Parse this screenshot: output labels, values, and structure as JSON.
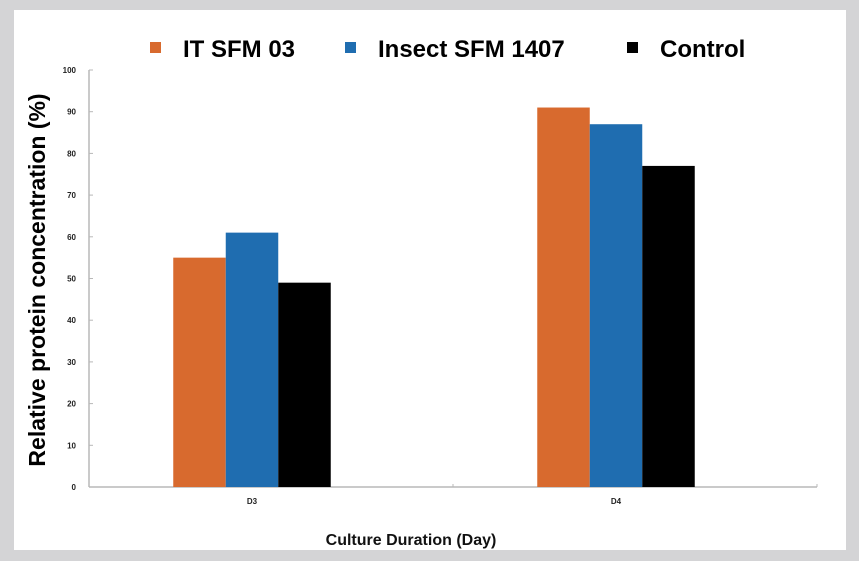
{
  "chart_data": {
    "type": "bar",
    "title": "",
    "xlabel": "Culture Duration (Day)",
    "ylabel": "Relative protein concentration (%)",
    "categories": [
      "D3",
      "D4"
    ],
    "series": [
      {
        "name": "IT SFM 03",
        "color": "#d86a2e",
        "values": [
          55,
          91
        ]
      },
      {
        "name": "Insect SFM 1407",
        "color": "#1f6db0",
        "values": [
          61,
          87
        ]
      },
      {
        "name": "Control",
        "color": "#000000",
        "values": [
          49,
          77
        ]
      }
    ],
    "ylim": [
      0,
      100
    ],
    "yticks": [
      0,
      10,
      20,
      30,
      40,
      50,
      60,
      70,
      80,
      90,
      100
    ],
    "grid": false,
    "legend_position": "top"
  }
}
